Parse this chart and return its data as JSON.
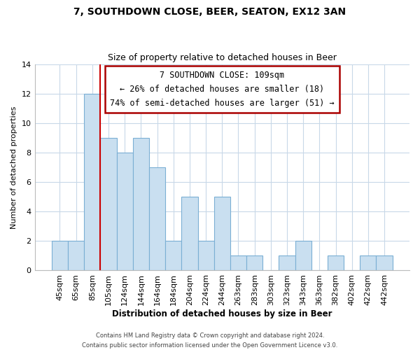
{
  "title": "7, SOUTHDOWN CLOSE, BEER, SEATON, EX12 3AN",
  "subtitle": "Size of property relative to detached houses in Beer",
  "xlabel": "Distribution of detached houses by size in Beer",
  "ylabel": "Number of detached properties",
  "bin_labels": [
    "45sqm",
    "65sqm",
    "85sqm",
    "105sqm",
    "124sqm",
    "144sqm",
    "164sqm",
    "184sqm",
    "204sqm",
    "224sqm",
    "244sqm",
    "263sqm",
    "283sqm",
    "303sqm",
    "323sqm",
    "343sqm",
    "363sqm",
    "382sqm",
    "402sqm",
    "422sqm",
    "442sqm"
  ],
  "bar_heights": [
    2,
    2,
    12,
    9,
    8,
    9,
    7,
    2,
    5,
    2,
    5,
    1,
    1,
    0,
    1,
    2,
    0,
    1,
    0,
    1,
    1
  ],
  "bar_color": "#c9dff0",
  "bar_edge_color": "#7bafd4",
  "property_line_index": 3,
  "property_line_color": "#cc0000",
  "ylim": [
    0,
    14
  ],
  "yticks": [
    0,
    2,
    4,
    6,
    8,
    10,
    12,
    14
  ],
  "annotation_title": "7 SOUTHDOWN CLOSE: 109sqm",
  "annotation_line1": "← 26% of detached houses are smaller (18)",
  "annotation_line2": "74% of semi-detached houses are larger (51) →",
  "annotation_box_color": "#ffffff",
  "annotation_box_edge_color": "#aa0000",
  "footer_line1": "Contains HM Land Registry data © Crown copyright and database right 2024.",
  "footer_line2": "Contains public sector information licensed under the Open Government Licence v3.0.",
  "background_color": "#ffffff",
  "grid_color": "#c8d8e8"
}
